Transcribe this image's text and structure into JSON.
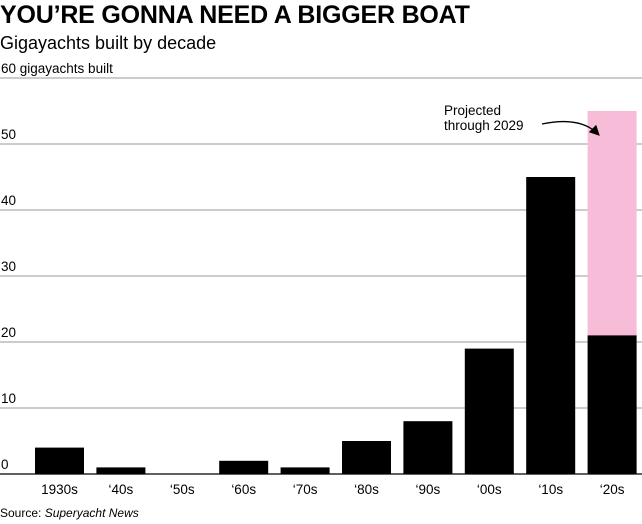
{
  "title": "YOU’RE GONNA NEED A BIGGER BOAT",
  "subtitle": "Gigayachts built by decade",
  "source": {
    "prefix": "Source: ",
    "name": "Superyacht News"
  },
  "colors": {
    "bar": "#000000",
    "projected": "#f7bcd8",
    "grid": "#9a9a9a",
    "text": "#000000"
  },
  "chart_data": {
    "type": "bar",
    "title": "YOU’RE GONNA NEED A BIGGER BOAT",
    "subtitle": "Gigayachts built by decade",
    "ylabel": "60 gigayachts built",
    "xlabel": "",
    "categories": [
      "1930s",
      "‘40s",
      "‘50s",
      "‘60s",
      "‘70s",
      "‘80s",
      "‘90s",
      "‘00s",
      "‘10s",
      "‘20s"
    ],
    "series": [
      {
        "name": "",
        "values": [
          4,
          1,
          0,
          2,
          1,
          5,
          8,
          19,
          45,
          21
        ]
      }
    ],
    "projected": {
      "category": "‘20s",
      "value": 55,
      "label": [
        "Projected",
        "through 2029"
      ]
    },
    "yticks": [
      0,
      10,
      20,
      30,
      40,
      50,
      60
    ],
    "ytick_labels": [
      "0",
      "10",
      "20",
      "30",
      "40",
      "50",
      "60 gigayachts built"
    ],
    "ylim": [
      0,
      60
    ],
    "grid": true,
    "legend": "none"
  }
}
